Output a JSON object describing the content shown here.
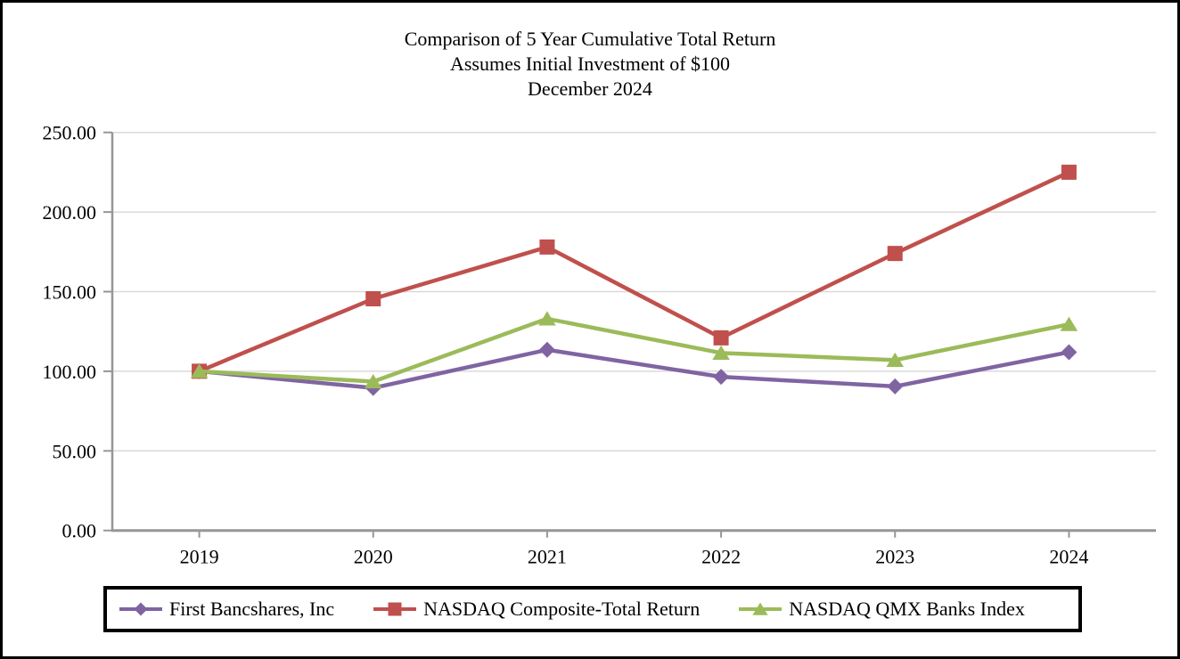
{
  "chart_data": {
    "type": "line",
    "title": "Comparison of 5 Year Cumulative Total Return",
    "subtitle": "Assumes Initial Investment of $100",
    "date_label": "December 2024",
    "categories": [
      "2019",
      "2020",
      "2021",
      "2022",
      "2023",
      "2024"
    ],
    "series": [
      {
        "name": "First Bancshares, Inc",
        "color": "#8064A2",
        "marker": "diamond",
        "values": [
          100.0,
          89.5,
          113.5,
          96.5,
          90.5,
          112.0
        ]
      },
      {
        "name": "NASDAQ Composite-Total Return",
        "color": "#C0504D",
        "marker": "square",
        "values": [
          100.0,
          145.5,
          178.0,
          121.0,
          174.0,
          225.0
        ]
      },
      {
        "name": "NASDAQ QMX Banks Index",
        "color": "#9BBB59",
        "marker": "triangle",
        "values": [
          100.0,
          93.5,
          133.0,
          111.5,
          107.0,
          129.5
        ]
      }
    ],
    "ylim": [
      0,
      250
    ],
    "ytick_step": 50,
    "ytick_labels": [
      "0.00",
      "50.00",
      "100.00",
      "150.00",
      "200.00",
      "250.00"
    ],
    "xlabel": "",
    "ylabel": "",
    "grid": true,
    "legend_position": "bottom",
    "colors": {
      "axis": "#969696",
      "gridline": "#D9D9D9",
      "text": "#000000",
      "plot_background": "#FFFFFF",
      "frame_border": "#000000"
    }
  }
}
